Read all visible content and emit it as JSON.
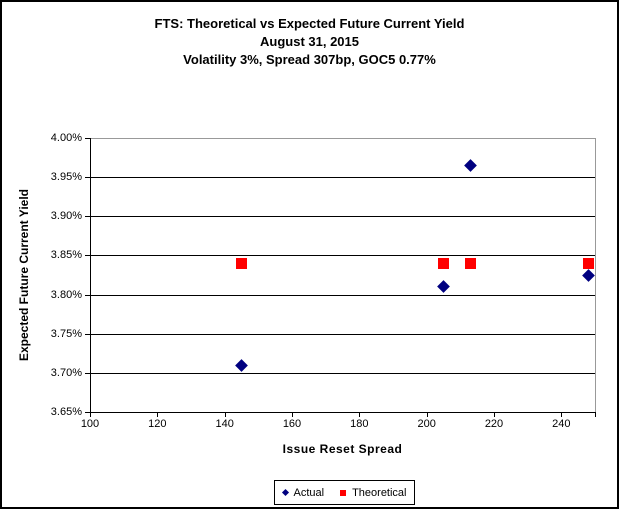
{
  "colors": {
    "actual": "#000080",
    "theoretical": "#FF0000",
    "gridline": "#000000",
    "plot_border_gray": "#999999",
    "text": "#000000"
  },
  "chart_data": {
    "type": "scatter",
    "title": "FTS: Theoretical vs Expected Future Current Yield",
    "subtitle_date": "August 31, 2015",
    "subtitle_params": "Volatility 3%, Spread 307bp, GOC5 0.77%",
    "xlabel": "Issue Reset Spread",
    "ylabel": "Expected Future Current Yield",
    "xlim": [
      100,
      250
    ],
    "ylim": [
      3.65,
      4.0
    ],
    "x_ticks": [
      100,
      120,
      140,
      160,
      180,
      200,
      220,
      240
    ],
    "x_tick_labels": [
      "100",
      "120",
      "140",
      "160",
      "180",
      "200",
      "220",
      "240"
    ],
    "y_ticks": [
      3.65,
      3.7,
      3.75,
      3.8,
      3.85,
      3.9,
      3.95,
      4.0
    ],
    "y_tick_labels": [
      "3.65%",
      "3.70%",
      "3.75%",
      "3.80%",
      "3.85%",
      "3.90%",
      "3.95%",
      "4.00%"
    ],
    "grid": "horizontal-major",
    "legend_position": "bottom-center",
    "series": [
      {
        "name": "Actual",
        "marker": "diamond",
        "color": "#000080",
        "points": [
          [
            145,
            3.71
          ],
          [
            205,
            3.81
          ],
          [
            213,
            3.965
          ],
          [
            248,
            3.825
          ]
        ]
      },
      {
        "name": "Theoretical",
        "marker": "square",
        "color": "#FF0000",
        "points": [
          [
            145,
            3.84
          ],
          [
            205,
            3.84
          ],
          [
            213,
            3.84
          ],
          [
            248,
            3.84
          ]
        ]
      }
    ]
  }
}
